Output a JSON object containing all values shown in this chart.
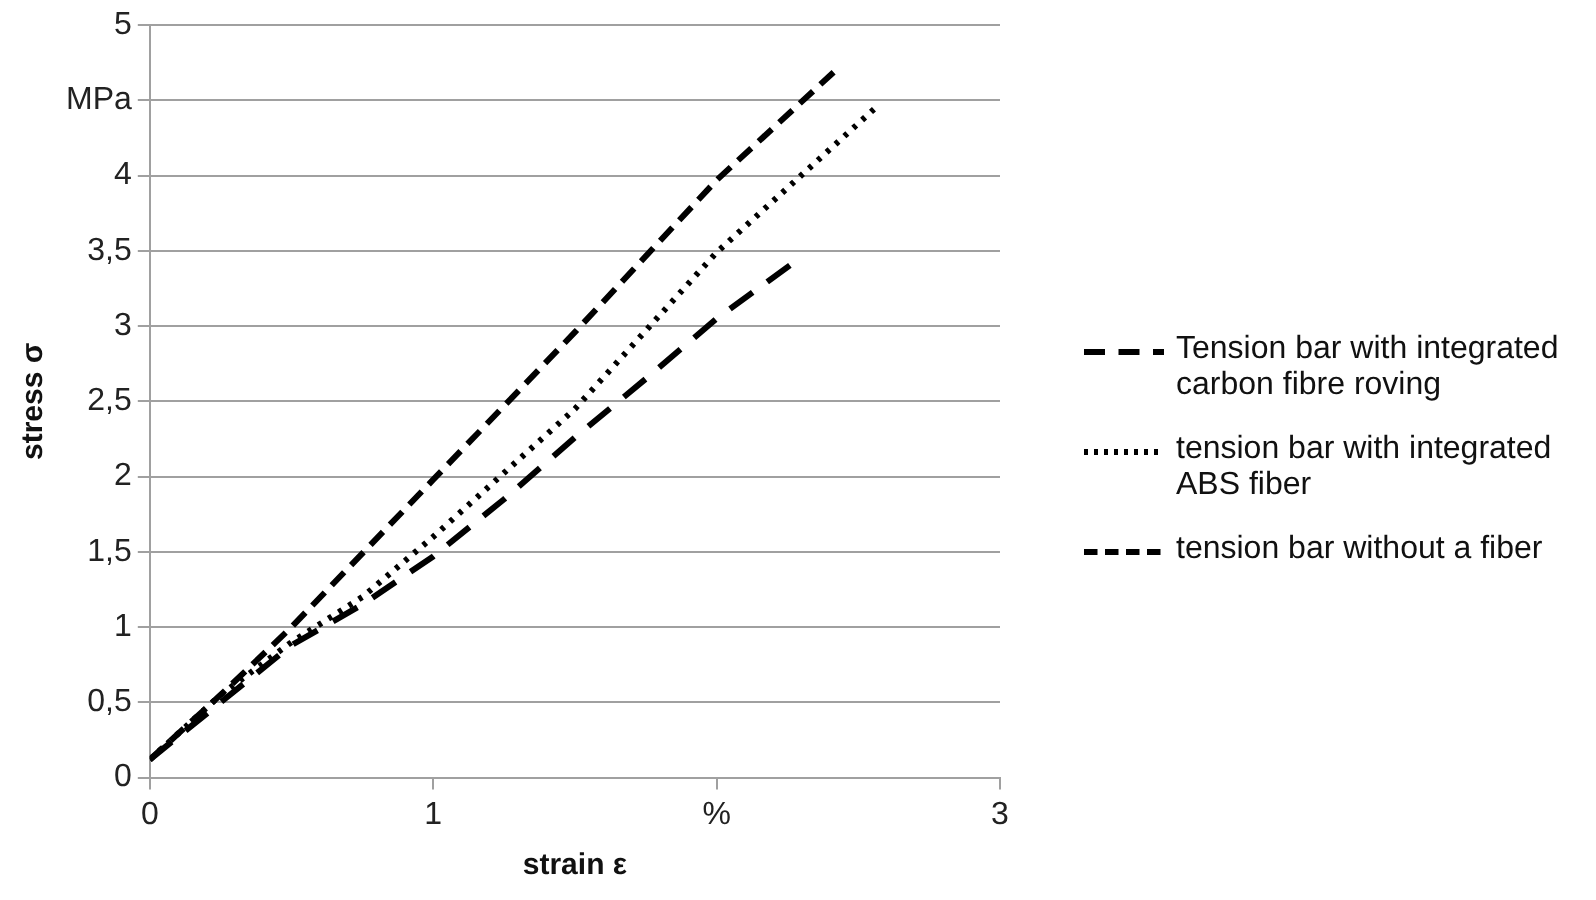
{
  "chart_data": {
    "type": "line",
    "xlabel": "strain ε",
    "ylabel": "stress σ",
    "xlim": [
      0,
      3
    ],
    "xticks": [
      0,
      1,
      {
        "value": 2,
        "label": "%"
      },
      3
    ],
    "ylim": [
      0,
      5
    ],
    "yticks": [
      0,
      {
        "value": 0.5,
        "label": "0,5"
      },
      1,
      {
        "value": 1.5,
        "label": "1,5"
      },
      2,
      {
        "value": 2.5,
        "label": "2,5"
      },
      3,
      {
        "value": 3.5,
        "label": "3,5"
      },
      4,
      {
        "value": 4.5,
        "label": "MPa"
      },
      5
    ],
    "grid": "y",
    "legend": "right",
    "marker": "none",
    "series": [
      {
        "name": "Tension bar with integrated carbon fibre roving",
        "color": "#000000",
        "line_style": "dashed",
        "x": [
          0,
          0.25,
          0.5,
          0.75,
          1,
          1.25,
          1.5,
          1.75,
          2,
          2.27
        ],
        "values": [
          0.12,
          0.5,
          0.88,
          1.15,
          1.47,
          1.85,
          2.26,
          2.65,
          3.05,
          3.42
        ]
      },
      {
        "name": "tension bar with integrated ABS fiber",
        "color": "#000000",
        "line_style": "dotted",
        "x": [
          0,
          0.25,
          0.5,
          0.75,
          1,
          1.5,
          2,
          2.56
        ],
        "values": [
          0.12,
          0.55,
          0.9,
          1.2,
          1.6,
          2.45,
          3.49,
          4.45
        ]
      },
      {
        "name": "tension bar without a fiber",
        "color": "#000000",
        "line_style": "dashed",
        "x": [
          0,
          0.25,
          0.5,
          1,
          1.5,
          2,
          2.42
        ],
        "values": [
          0.12,
          0.55,
          1.0,
          1.98,
          2.96,
          3.97,
          4.7
        ]
      }
    ]
  }
}
